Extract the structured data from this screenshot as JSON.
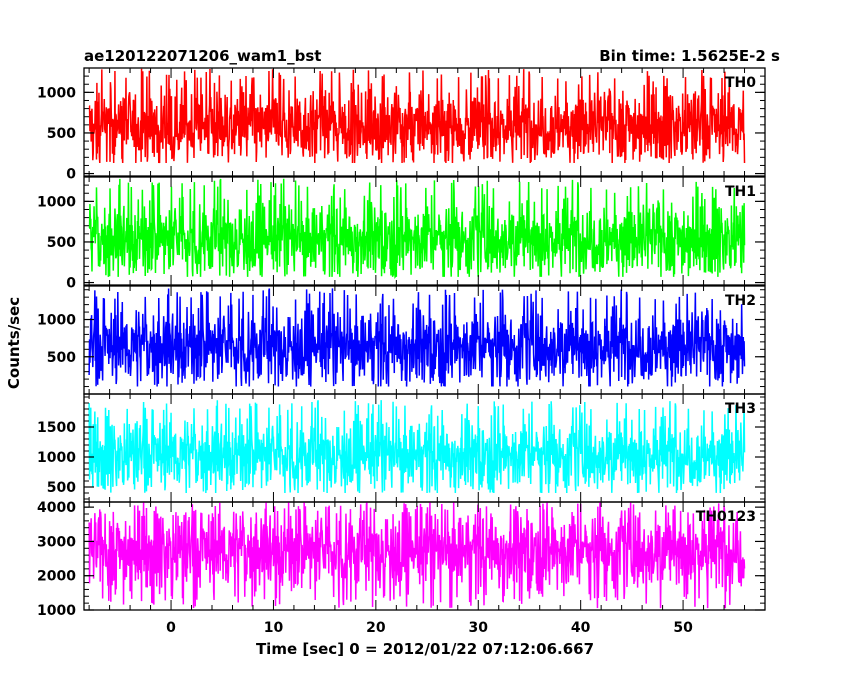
{
  "chart_data": {
    "type": "line",
    "title_left": "ae120122071206_wam1_bst",
    "title_right": "Bin time: 1.5625E-2 s",
    "xlabel": "Time [sec] 0 = 2012/01/22 07:12:06.667",
    "ylabel": "Counts/sec",
    "xlim": [
      -8.5,
      58
    ],
    "x_data_range": [
      -8,
      56
    ],
    "xticks": [
      0,
      10,
      20,
      30,
      40,
      50
    ],
    "xtick_labels": [
      "0",
      "10",
      "20",
      "30",
      "40",
      "50"
    ],
    "grid": false,
    "panels": [
      {
        "name": "TH0",
        "color": "#ff0000",
        "ylim": [
          -30,
          1300
        ],
        "yticks": [
          0,
          500,
          1000
        ],
        "ytick_labels": [
          "0",
          "500",
          "1000"
        ],
        "mean": 600,
        "min": 130,
        "max": 1300
      },
      {
        "name": "TH1",
        "color": "#00ff00",
        "ylim": [
          -30,
          1300
        ],
        "yticks": [
          0,
          500,
          1000
        ],
        "ytick_labels": [
          "0",
          "500",
          "1000"
        ],
        "mean": 550,
        "min": 70,
        "max": 1280
      },
      {
        "name": "TH2",
        "color": "#0000ff",
        "ylim": [
          0,
          1450
        ],
        "yticks": [
          500,
          1000
        ],
        "ytick_labels": [
          "500",
          "1000"
        ],
        "mean": 650,
        "min": 100,
        "max": 1420
      },
      {
        "name": "TH3",
        "color": "#00ffff",
        "ylim": [
          250,
          2050
        ],
        "yticks": [
          500,
          1000,
          1500
        ],
        "ytick_labels": [
          "500",
          "1000",
          "1500"
        ],
        "mean": 1050,
        "min": 400,
        "max": 1950
      },
      {
        "name": "TH0123",
        "color": "#ff00ff",
        "ylim": [
          1000,
          4150
        ],
        "yticks": [
          1000,
          2000,
          3000,
          4000
        ],
        "ytick_labels": [
          "1000",
          "2000",
          "3000",
          "4000"
        ],
        "mean": 2750,
        "min": 1050,
        "max": 4150
      }
    ]
  }
}
